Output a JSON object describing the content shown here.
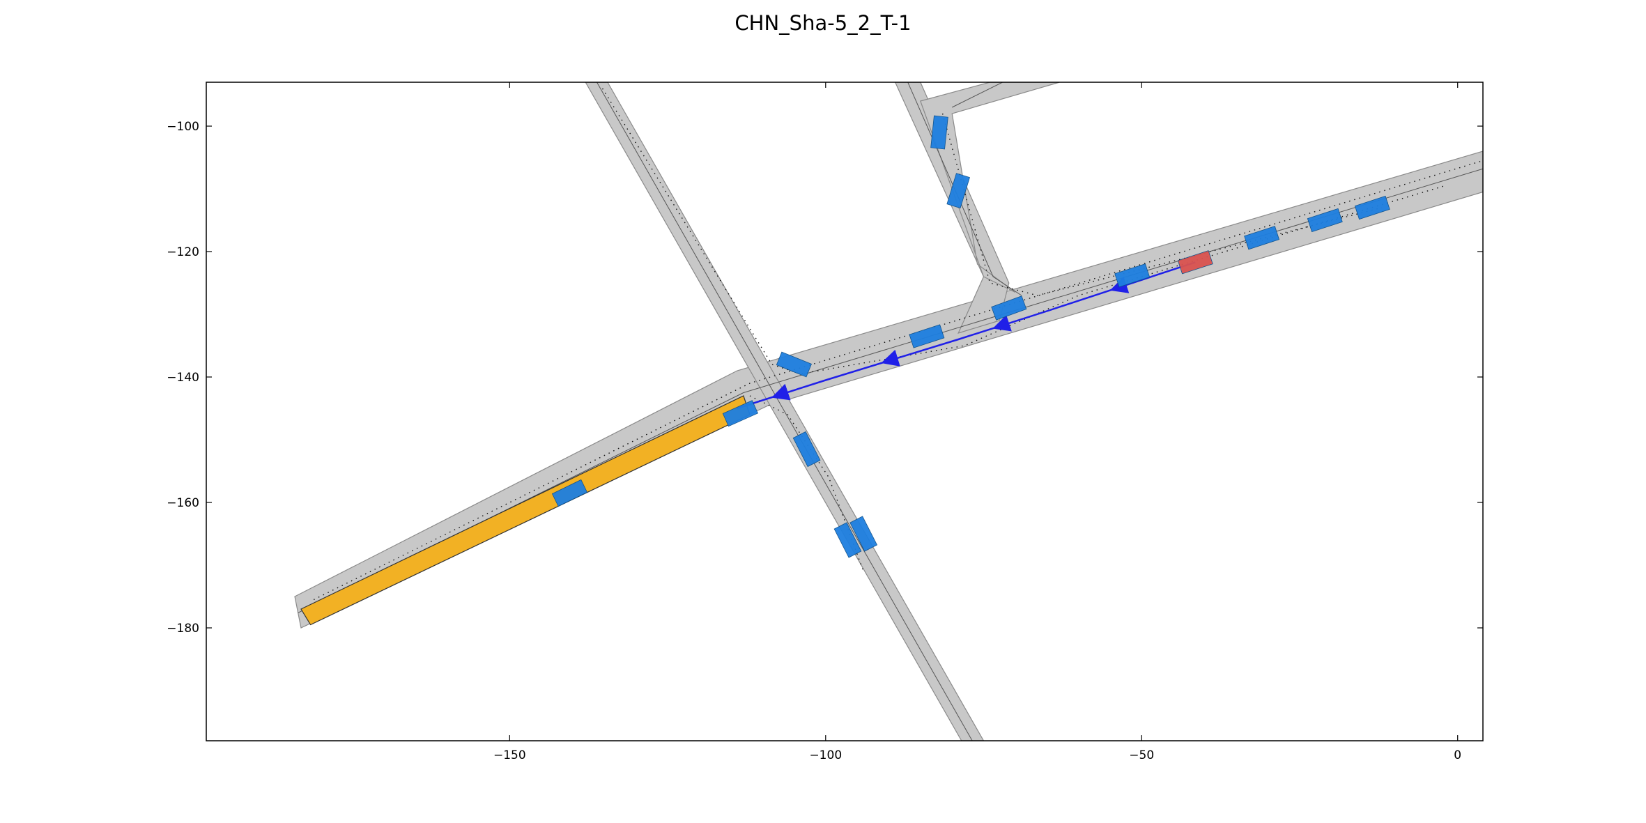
{
  "title": "CHN_Sha-5_2_T-1",
  "chart_data": {
    "type": "scenario-map",
    "title": "CHN_Sha-5_2_T-1",
    "xlim": [
      -198,
      4
    ],
    "ylim": [
      -198,
      -93
    ],
    "x_ticks": [
      -150,
      -100,
      -50,
      0
    ],
    "y_ticks": [
      -100,
      -120,
      -140,
      -160,
      -180
    ],
    "grid": false,
    "colors": {
      "road": "#c8c8c8",
      "road_edge": "#8a8a8a",
      "lane_line": "#555555",
      "goal_region": "#f2b124",
      "ego_vehicle": "#d9534f",
      "other_vehicle": "#1e7fe0",
      "planned_path": "#2020e8",
      "lane_arrow": "#e6e6e6"
    },
    "ego_vehicle": {
      "x": -41.5,
      "y": -121.7,
      "heading_deg": 198
    },
    "other_vehicles": [
      {
        "x": -82,
        "y": -101,
        "heading_deg": 84
      },
      {
        "x": -79,
        "y": -110.3,
        "heading_deg": 73
      },
      {
        "x": -71,
        "y": -129,
        "heading_deg": 20
      },
      {
        "x": -84,
        "y": -133.5,
        "heading_deg": 18
      },
      {
        "x": -51.5,
        "y": -123.8,
        "heading_deg": 18
      },
      {
        "x": -31,
        "y": -117.8,
        "heading_deg": 18
      },
      {
        "x": -21,
        "y": -115,
        "heading_deg": 18
      },
      {
        "x": -13.5,
        "y": -113,
        "heading_deg": 18
      },
      {
        "x": -105,
        "y": -138,
        "heading_deg": -22
      },
      {
        "x": -113.5,
        "y": -145.8,
        "heading_deg": 24
      },
      {
        "x": -103,
        "y": -151.5,
        "heading_deg": -63
      },
      {
        "x": -140.5,
        "y": -158.5,
        "heading_deg": 26
      },
      {
        "x": -96.5,
        "y": -166,
        "heading_deg": -63
      },
      {
        "x": -94,
        "y": -165,
        "heading_deg": -63
      }
    ],
    "planned_path": [
      [
        -41.5,
        -121.7
      ],
      [
        -65,
        -129.5
      ],
      [
        -79,
        -134
      ],
      [
        -100,
        -140.5
      ],
      [
        -114,
        -145
      ]
    ],
    "goal_region": [
      [
        -183,
        -177
      ],
      [
        -113,
        -143
      ],
      [
        -112,
        -146
      ],
      [
        -181.5,
        -179.5
      ]
    ]
  }
}
